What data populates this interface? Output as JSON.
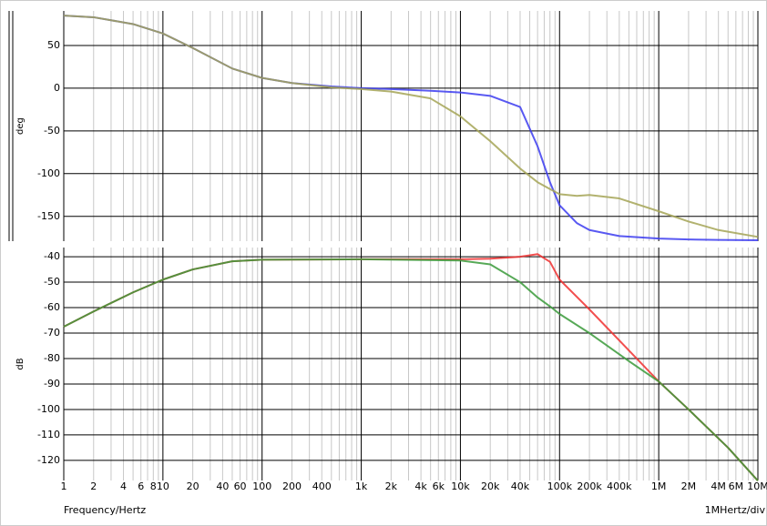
{
  "chart_data": [
    {
      "type": "line",
      "xscale": "log",
      "ylabel": "deg",
      "xlim": [
        1,
        10000000
      ],
      "ylim": [
        -179,
        90.4
      ],
      "yticks": [
        50,
        0,
        -50,
        -100,
        -150
      ],
      "x": [
        1,
        2,
        5,
        10,
        20,
        50,
        100,
        200,
        500,
        1000,
        2000,
        5000,
        10000,
        20000,
        40000,
        60000,
        80000,
        100000,
        150000,
        200000,
        400000,
        1000000,
        2000000,
        4000000,
        10000000
      ],
      "series": [
        {
          "color": "#3c3cf0",
          "values": [
            85,
            83,
            75,
            64,
            47,
            23,
            12,
            6,
            2,
            0,
            -1,
            -3,
            -5,
            -9,
            -22,
            -68,
            -110,
            -137,
            -158,
            -166,
            -173,
            -176,
            -177,
            -177.5,
            -178
          ]
        },
        {
          "color": "#a4a456",
          "values": [
            85,
            83,
            75,
            64,
            47,
            23,
            12,
            6,
            1,
            -1,
            -4,
            -12,
            -33,
            -62,
            -94,
            -110,
            -118,
            -124,
            -126,
            -125,
            -129,
            -144,
            -156,
            -166,
            -174
          ]
        }
      ]
    },
    {
      "type": "line",
      "xscale": "log",
      "ylabel": "dB",
      "xlabel": "Frequency/Hertz",
      "x_division": "1MHertz/div",
      "xlim": [
        1,
        10000000
      ],
      "ylim": [
        -127.9,
        -36.4
      ],
      "yticks": [
        -40,
        -50,
        -60,
        -70,
        -80,
        -90,
        -100,
        -110,
        -120
      ],
      "xticks": [
        1,
        2,
        4,
        6,
        8,
        10,
        20,
        40,
        60,
        100,
        200,
        400,
        {
          "value": 1000,
          "label": "1k"
        },
        {
          "value": 2000,
          "label": "2k"
        },
        {
          "value": 4000,
          "label": "4k"
        },
        {
          "value": 6000,
          "label": "6k"
        },
        {
          "value": 10000,
          "label": "10k"
        },
        {
          "value": 20000,
          "label": "20k"
        },
        {
          "value": 40000,
          "label": "40k"
        },
        {
          "value": 100000,
          "label": "100k"
        },
        {
          "value": 200000,
          "label": "200k"
        },
        {
          "value": 400000,
          "label": "400k"
        },
        {
          "value": 1000000,
          "label": "1M"
        },
        {
          "value": 2000000,
          "label": "2M"
        },
        {
          "value": 4000000,
          "label": "4M"
        },
        {
          "value": 6000000,
          "label": "6M"
        },
        {
          "value": 10000000,
          "label": "10M"
        }
      ],
      "xminorticks": [
        3,
        5,
        7,
        9,
        30,
        50,
        70,
        80,
        90,
        300,
        500,
        600,
        700,
        800,
        900,
        3000,
        5000,
        7000,
        8000,
        9000,
        30000,
        50000,
        60000,
        70000,
        80000,
        90000,
        300000,
        500000,
        600000,
        700000,
        800000,
        900000,
        3000000,
        5000000,
        7000000,
        8000000,
        9000000
      ],
      "x": [
        1,
        2,
        5,
        10,
        20,
        50,
        100,
        1000,
        10000,
        20000,
        40000,
        60000,
        80000,
        100000,
        200000,
        500000,
        1000000,
        2000000,
        5000000,
        10000000
      ],
      "series": [
        {
          "color": "#f03030",
          "values": [
            -67.5,
            -61.5,
            -54,
            -49,
            -45,
            -41.8,
            -41.2,
            -41,
            -41,
            -40.8,
            -40,
            -39,
            -42,
            -49,
            -60.7,
            -76.8,
            -89,
            -100,
            -115,
            -128
          ]
        },
        {
          "color": "#3a9a3a",
          "values": [
            -67.5,
            -61.5,
            -54,
            -49,
            -45,
            -41.8,
            -41.2,
            -41,
            -41.5,
            -43,
            -50,
            -56,
            -59.5,
            -62.5,
            -70,
            -81,
            -89,
            -100,
            -115,
            -128
          ]
        }
      ]
    }
  ]
}
